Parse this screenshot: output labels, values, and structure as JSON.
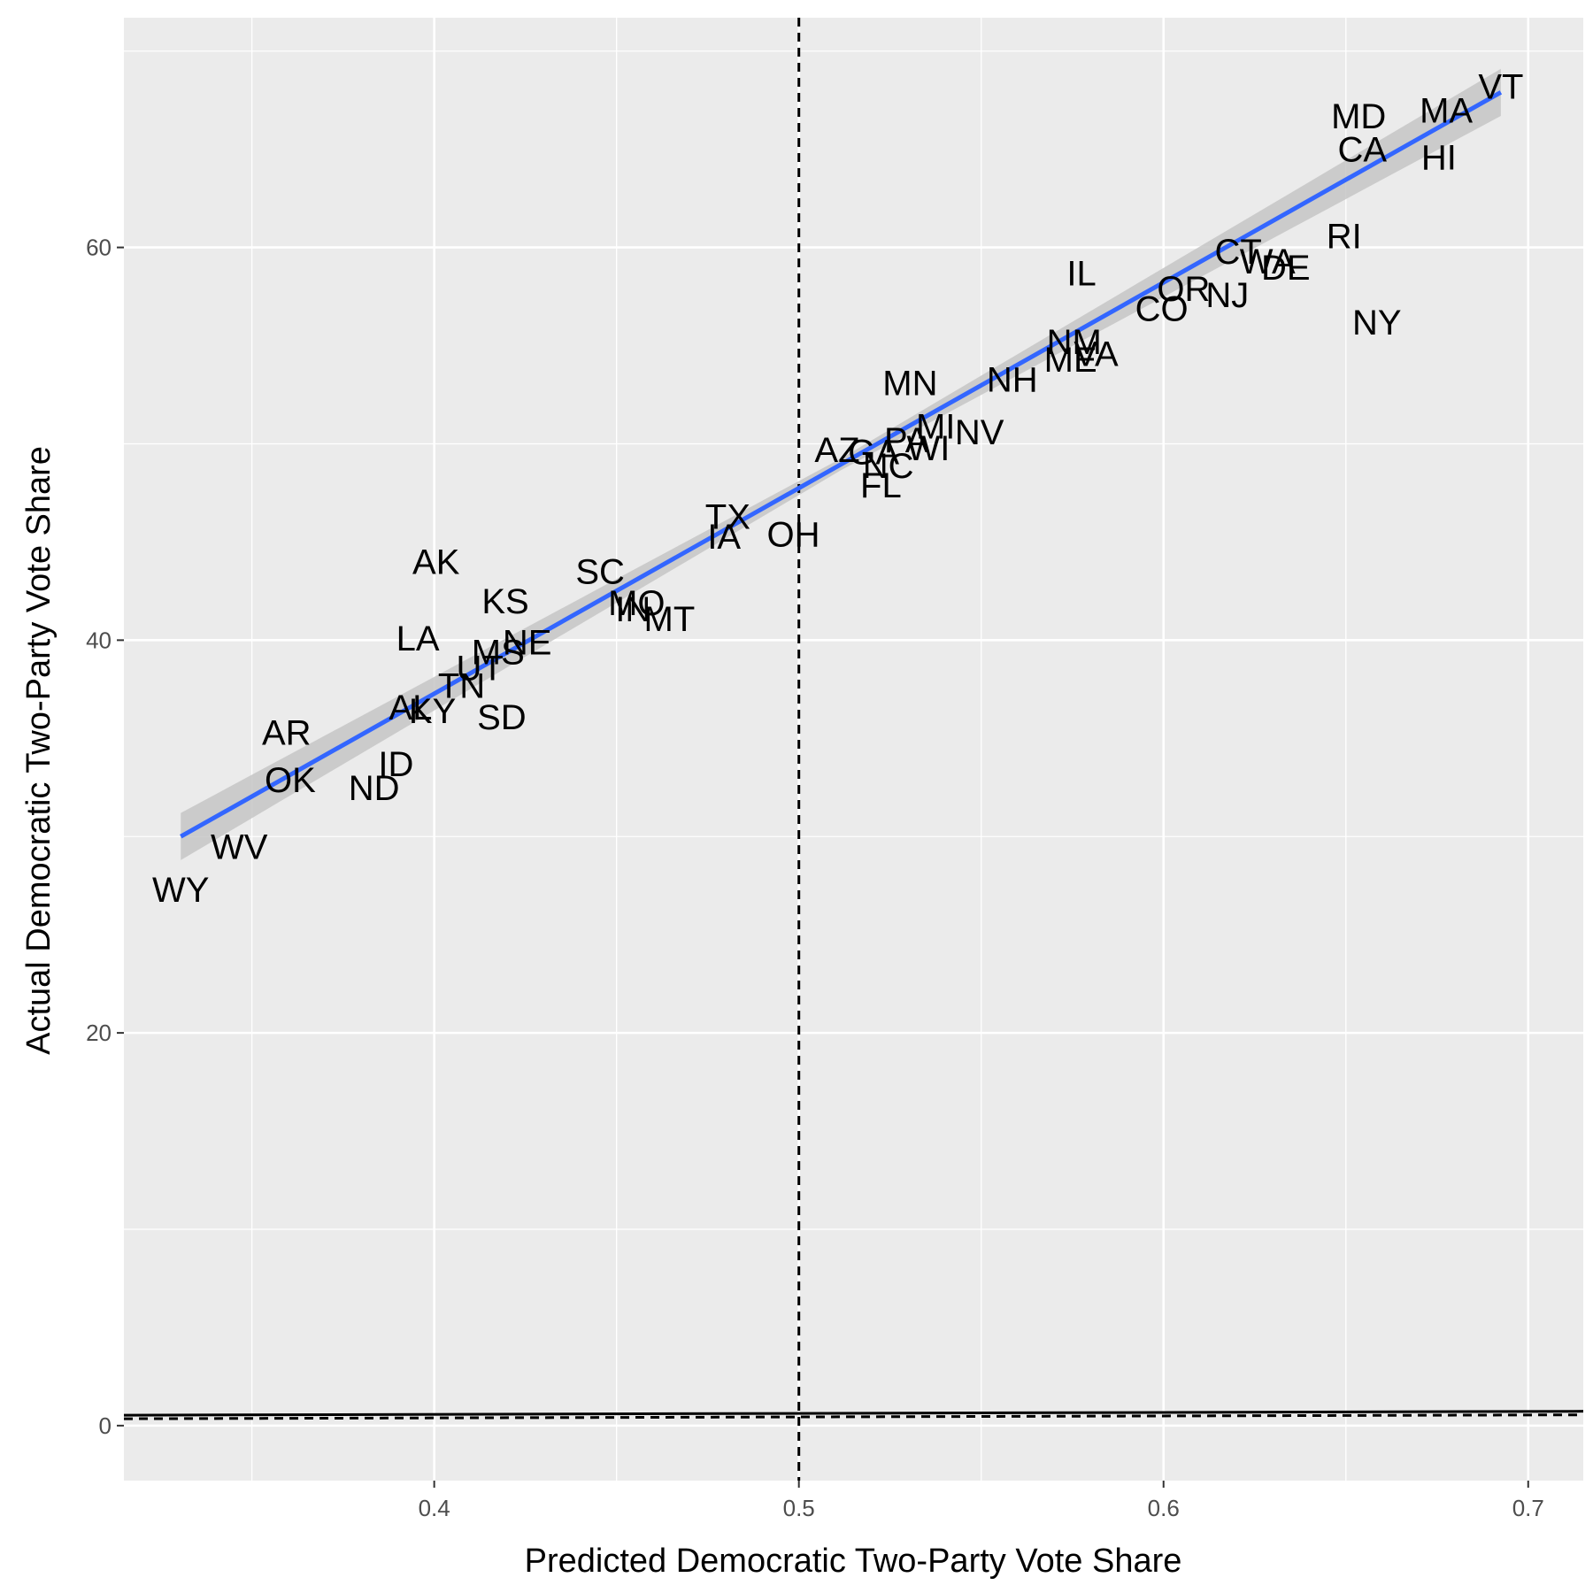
{
  "chart_data": {
    "type": "scatter",
    "title": "",
    "xlabel": "Predicted Democratic Two-Party Vote Share",
    "ylabel": "Actual Democratic Two-Party Vote Share",
    "xlim": [
      0.3149,
      0.7151
    ],
    "ylim": [
      -2.8,
      71.7
    ],
    "x_ticks": [
      0.4,
      0.5,
      0.6,
      0.7
    ],
    "x_tick_labels": [
      "0.4",
      "0.5",
      "0.6",
      "0.7"
    ],
    "y_ticks": [
      0,
      20,
      40,
      60
    ],
    "y_tick_labels": [
      "0",
      "20",
      "40",
      "60"
    ],
    "grid": true,
    "legend": "none",
    "points": [
      {
        "label": "VT",
        "x": 0.6925,
        "y": 68.2
      },
      {
        "label": "MD",
        "x": 0.6535,
        "y": 66.7
      },
      {
        "label": "MA",
        "x": 0.6775,
        "y": 67.0
      },
      {
        "label": "CA",
        "x": 0.6545,
        "y": 65.0
      },
      {
        "label": "HI",
        "x": 0.6755,
        "y": 64.6
      },
      {
        "label": "RI",
        "x": 0.6495,
        "y": 60.6
      },
      {
        "label": "NY",
        "x": 0.6585,
        "y": 56.2
      },
      {
        "label": "CT",
        "x": 0.6205,
        "y": 59.8
      },
      {
        "label": "WA",
        "x": 0.6285,
        "y": 59.3
      },
      {
        "label": "DE",
        "x": 0.6335,
        "y": 59.0
      },
      {
        "label": "IL",
        "x": 0.5775,
        "y": 58.7
      },
      {
        "label": "OR",
        "x": 0.6055,
        "y": 57.9
      },
      {
        "label": "NJ",
        "x": 0.6175,
        "y": 57.6
      },
      {
        "label": "CO",
        "x": 0.5995,
        "y": 56.9
      },
      {
        "label": "NM",
        "x": 0.5755,
        "y": 55.2
      },
      {
        "label": "VA",
        "x": 0.5815,
        "y": 54.6
      },
      {
        "label": "ME",
        "x": 0.5745,
        "y": 54.3
      },
      {
        "label": "NH",
        "x": 0.5585,
        "y": 53.3
      },
      {
        "label": "MN",
        "x": 0.5305,
        "y": 53.1
      },
      {
        "label": "MI",
        "x": 0.5375,
        "y": 50.9
      },
      {
        "label": "NV",
        "x": 0.5495,
        "y": 50.6
      },
      {
        "label": "AZ",
        "x": 0.5105,
        "y": 49.7
      },
      {
        "label": "GA",
        "x": 0.5205,
        "y": 49.6
      },
      {
        "label": "PA",
        "x": 0.5295,
        "y": 50.2
      },
      {
        "label": "WI",
        "x": 0.5355,
        "y": 49.8
      },
      {
        "label": "NC",
        "x": 0.5245,
        "y": 48.9
      },
      {
        "label": "FL",
        "x": 0.5225,
        "y": 47.9
      },
      {
        "label": "TX",
        "x": 0.4805,
        "y": 46.3
      },
      {
        "label": "IA",
        "x": 0.4795,
        "y": 45.3
      },
      {
        "label": "OH",
        "x": 0.4985,
        "y": 45.4
      },
      {
        "label": "AK",
        "x": 0.4005,
        "y": 44.0
      },
      {
        "label": "SC",
        "x": 0.4455,
        "y": 43.5
      },
      {
        "label": "KS",
        "x": 0.4195,
        "y": 42.0
      },
      {
        "label": "MO",
        "x": 0.4555,
        "y": 41.9
      },
      {
        "label": "IN",
        "x": 0.4545,
        "y": 41.6
      },
      {
        "label": "MT",
        "x": 0.4645,
        "y": 41.1
      },
      {
        "label": "LA",
        "x": 0.3955,
        "y": 40.1
      },
      {
        "label": "NE",
        "x": 0.4255,
        "y": 39.9
      },
      {
        "label": "MS",
        "x": 0.4175,
        "y": 39.4
      },
      {
        "label": "UT",
        "x": 0.4125,
        "y": 38.6
      },
      {
        "label": "TN",
        "x": 0.4075,
        "y": 37.7
      },
      {
        "label": "AL",
        "x": 0.3935,
        "y": 36.6
      },
      {
        "label": "KY",
        "x": 0.3995,
        "y": 36.4
      },
      {
        "label": "SD",
        "x": 0.4185,
        "y": 36.1
      },
      {
        "label": "AR",
        "x": 0.3595,
        "y": 35.3
      },
      {
        "label": "ID",
        "x": 0.3895,
        "y": 33.7
      },
      {
        "label": "OK",
        "x": 0.3605,
        "y": 32.9
      },
      {
        "label": "ND",
        "x": 0.3835,
        "y": 32.5
      },
      {
        "label": "WV",
        "x": 0.3465,
        "y": 29.5
      },
      {
        "label": "WY",
        "x": 0.3305,
        "y": 27.3
      }
    ],
    "fit_line": {
      "x0": 0.3305,
      "y0": 30.0,
      "x1": 0.6925,
      "y1": 67.9
    },
    "fit_band_halfwidth": [
      1.2,
      0.3,
      1.2
    ],
    "ref_vline_x": 0.5,
    "ref_hline": {
      "x0": 0.3149,
      "y0": 0.35,
      "x1": 0.7151,
      "y1": 0.55
    },
    "colors": {
      "panel": "#ebebeb",
      "grid_major": "#ffffff",
      "fit_line": "#3366ff",
      "fit_band": "#c6c6c6",
      "ref_line": "#000000"
    }
  }
}
